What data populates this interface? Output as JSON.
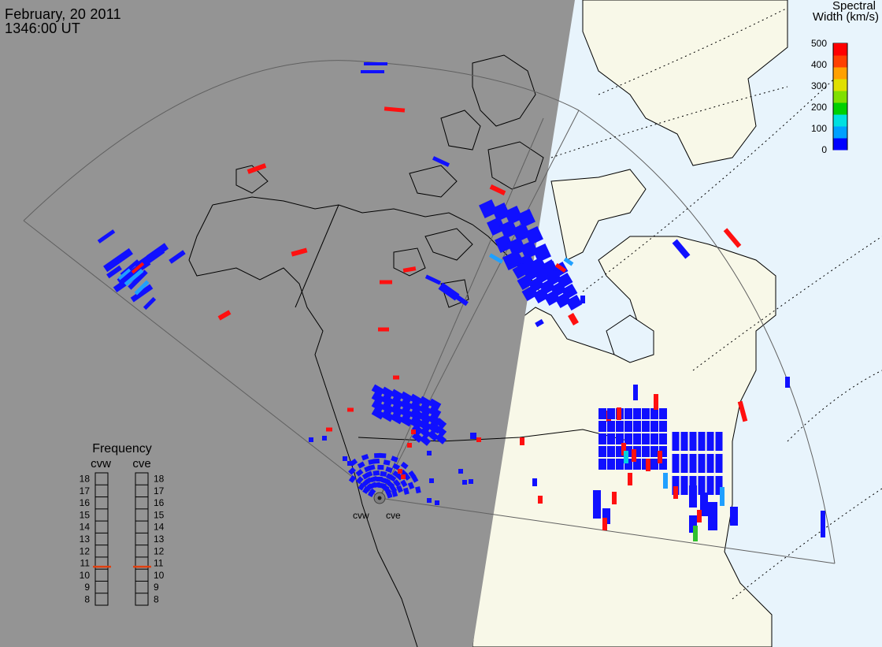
{
  "header": {
    "date": "February, 20 2011",
    "time": "1346:00 UT"
  },
  "colorbar": {
    "title_line1": "Spectral",
    "title_line2": "Width (km/s)",
    "ticks": [
      "500",
      "400",
      "300",
      "200",
      "100",
      "0"
    ],
    "colors": [
      "#0000ff",
      "#00a0ff",
      "#00e0e0",
      "#00d000",
      "#80e000",
      "#e0e000",
      "#ffa000",
      "#ff4000",
      "#ff0000"
    ]
  },
  "frequency": {
    "title": "Frequency",
    "channels": [
      {
        "label": "cvw",
        "value_mhz": 10.7
      },
      {
        "label": "cve",
        "value_mhz": 10.7
      }
    ],
    "scale": [
      "18",
      "17",
      "16",
      "15",
      "14",
      "13",
      "12",
      "11",
      "10",
      "9",
      "8"
    ]
  },
  "radars": [
    {
      "label": "cvw"
    },
    {
      "label": "cve"
    }
  ],
  "palette": {
    "night": "#949494",
    "day_land": "#f8f8e8",
    "day_sea": "#e8f4fc",
    "coast": "#000000",
    "fov": "#606060",
    "low_width": "#1010ff",
    "high_width": "#ff1010",
    "mid_width": "#20a0ff",
    "cyan": "#00d0e0",
    "green": "#30c030"
  }
}
